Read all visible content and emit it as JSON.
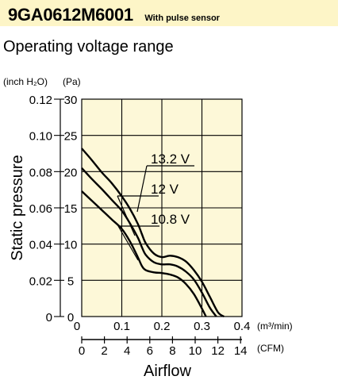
{
  "header": {
    "model": "9GA0612M6001",
    "note": "With pulse sensor",
    "subtitle": "Operating voltage range"
  },
  "chart_data": {
    "type": "line",
    "xlabel": "Airflow",
    "ylabel": "Static pressure",
    "x_unit_primary": "(m³/min)",
    "x_unit_secondary": "(CFM)",
    "y_unit_left": "(inch H₂O)",
    "y_unit_right": "(Pa)",
    "xlim": [
      0,
      0.4
    ],
    "ylim": [
      0,
      30
    ],
    "x_ticks_m3": [
      "0",
      "0.1",
      "0.2",
      "0.3",
      "0.4"
    ],
    "x_ticks_cfm": [
      "0",
      "2",
      "4",
      "6",
      "8",
      "10",
      "12",
      "14"
    ],
    "y_ticks_pa": [
      "0",
      "5",
      "10",
      "15",
      "20",
      "25",
      "30"
    ],
    "y_ticks_inch": [
      "0",
      "0.02",
      "0.04",
      "0.06",
      "0.08",
      "0.10",
      "0.12"
    ],
    "grid": true,
    "colors": {
      "plot_bg": "#fdf8d8",
      "header_bg": "#fdf5c7",
      "line": "#000000"
    },
    "series": [
      {
        "name": "13.2 V",
        "x": [
          0,
          0.025,
          0.05,
          0.075,
          0.1,
          0.12,
          0.14,
          0.15,
          0.16,
          0.18,
          0.2,
          0.22,
          0.24,
          0.26,
          0.28,
          0.3,
          0.32,
          0.34,
          0.355
        ],
        "y": [
          23.2,
          21.6,
          19.9,
          18.4,
          16.6,
          14.9,
          12.8,
          11.4,
          10.1,
          8.7,
          8.2,
          8.4,
          8.2,
          7.6,
          6.4,
          4.8,
          2.7,
          0.6,
          0
        ]
      },
      {
        "name": "12 V",
        "x": [
          0,
          0.025,
          0.05,
          0.075,
          0.1,
          0.12,
          0.14,
          0.15,
          0.16,
          0.18,
          0.2,
          0.22,
          0.24,
          0.26,
          0.28,
          0.3,
          0.32,
          0.336
        ],
        "y": [
          20.5,
          19.0,
          17.6,
          16.1,
          14.6,
          12.9,
          10.9,
          9.6,
          8.5,
          7.5,
          7.2,
          7.2,
          6.9,
          6.2,
          5.1,
          3.3,
          1.2,
          0
        ]
      },
      {
        "name": "10.8 V",
        "x": [
          0,
          0.025,
          0.05,
          0.075,
          0.1,
          0.12,
          0.14,
          0.15,
          0.16,
          0.18,
          0.2,
          0.22,
          0.24,
          0.26,
          0.28,
          0.3,
          0.31
        ],
        "y": [
          17.3,
          16.0,
          14.7,
          13.4,
          12.1,
          10.4,
          8.2,
          7.0,
          6.4,
          6.1,
          6.0,
          5.8,
          5.4,
          4.5,
          3.1,
          1.1,
          0
        ]
      }
    ]
  }
}
